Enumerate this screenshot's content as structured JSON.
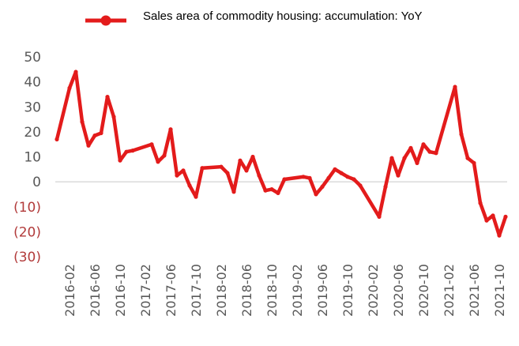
{
  "chart_data": {
    "type": "line",
    "title": "",
    "xlabel": "",
    "ylabel": "",
    "ylim": [
      -30,
      50
    ],
    "yticks": [
      50,
      40,
      30,
      20,
      10,
      0,
      -10,
      -20,
      -30
    ],
    "ytick_labels": [
      "50",
      "40",
      "30",
      "20",
      "10",
      "0",
      "(10)",
      "(20)",
      "(30)"
    ],
    "legend": {
      "position": "top",
      "marker": "circle"
    },
    "grid": false,
    "zero_line": true,
    "colors": {
      "series": "#e31b1b",
      "zero_line": "#c8c8c8",
      "negative_tick": "#b23b3b",
      "tick": "#595959"
    },
    "x_tick_labels": [
      "2016-02",
      "2016-06",
      "2016-10",
      "2017-02",
      "2017-06",
      "2017-10",
      "2018-02",
      "2018-06",
      "2018-10",
      "2019-02",
      "2019-06",
      "2019-10",
      "2020-02",
      "2020-06",
      "2020-10",
      "2021-02",
      "2021-06",
      "2021-10"
    ],
    "x": [
      "2015-12",
      "2016-02",
      "2016-03",
      "2016-04",
      "2016-05",
      "2016-06",
      "2016-07",
      "2016-08",
      "2016-09",
      "2016-10",
      "2016-11",
      "2016-12",
      "2017-03",
      "2017-04",
      "2017-05",
      "2017-06",
      "2017-07",
      "2017-08",
      "2017-09",
      "2017-10",
      "2017-11",
      "2018-02",
      "2018-03",
      "2018-04",
      "2018-05",
      "2018-06",
      "2018-07",
      "2018-08",
      "2018-09",
      "2018-10",
      "2018-11",
      "2018-12",
      "2019-03",
      "2019-04",
      "2019-05",
      "2019-06",
      "2019-07",
      "2019-08",
      "2019-09",
      "2019-10",
      "2019-11",
      "2019-12",
      "2020-03",
      "2020-04",
      "2020-05",
      "2020-06",
      "2020-07",
      "2020-08",
      "2020-09",
      "2020-10",
      "2020-11",
      "2020-12",
      "2021-03",
      "2021-04",
      "2021-05",
      "2021-06",
      "2021-07",
      "2021-08",
      "2021-09",
      "2021-10",
      "2021-11"
    ],
    "series": [
      {
        "name": "Sales area of commodity housing: accumulation: YoY",
        "values": [
          17,
          37.5,
          44,
          24,
          14.5,
          18.5,
          19.5,
          34,
          26,
          8.5,
          12,
          12.5,
          15,
          8,
          10.5,
          21,
          2.5,
          4.5,
          -1.5,
          -6,
          5.5,
          6,
          3.5,
          -4,
          8.5,
          4.5,
          10,
          2.5,
          -3.5,
          -3,
          -4.5,
          1,
          2,
          1.5,
          -5,
          -2,
          1.5,
          5,
          3.5,
          2,
          1,
          -1.5,
          -14,
          -2,
          9.5,
          2.5,
          9.5,
          13.5,
          7.5,
          15,
          12,
          11.5,
          38,
          19,
          9.5,
          7.5,
          -8.5,
          -15.5,
          -13.5,
          -21.5,
          -14
        ]
      }
    ]
  }
}
